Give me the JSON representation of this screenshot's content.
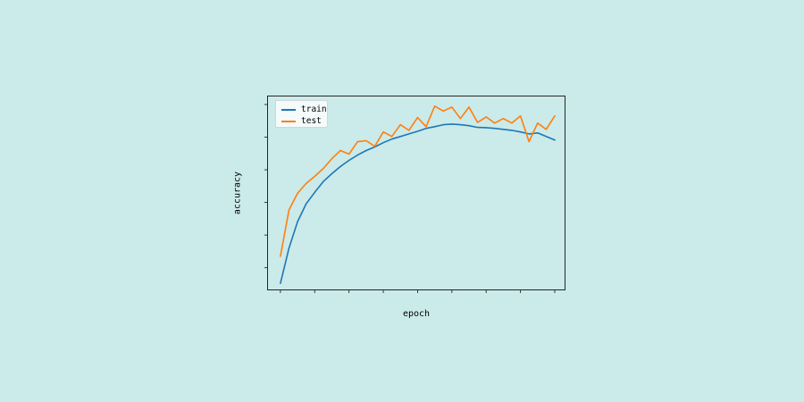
{
  "page": {
    "background_color": "#cbeaea",
    "frame_color": "#262626"
  },
  "labels": {
    "x_axis": "epoch",
    "y_axis": "accuracy"
  },
  "legend": {
    "position": "upper left",
    "entries": [
      "train",
      "test"
    ]
  },
  "chart_data": {
    "type": "line",
    "title": "",
    "xlabel": "epoch",
    "ylabel": "accuracy",
    "grid": false,
    "tick_labels_shown": false,
    "xlim": [
      -1.5,
      33.2
    ],
    "ylim": [
      0.332,
      0.926
    ],
    "xticks": [
      0,
      4,
      8,
      12,
      16,
      20,
      24,
      28,
      32
    ],
    "yticks": [
      0.4,
      0.5,
      0.6,
      0.7,
      0.8,
      0.9
    ],
    "x": [
      0,
      1,
      2,
      3,
      4,
      5,
      6,
      7,
      8,
      9,
      10,
      11,
      12,
      13,
      14,
      15,
      16,
      17,
      18,
      19,
      20,
      21,
      22,
      23,
      24,
      25,
      26,
      27,
      28,
      29,
      30,
      31,
      32
    ],
    "series": [
      {
        "name": "train",
        "color": "#1f77b4",
        "values": [
          0.352,
          0.46,
          0.541,
          0.596,
          0.631,
          0.664,
          0.688,
          0.71,
          0.729,
          0.745,
          0.759,
          0.77,
          0.783,
          0.794,
          0.802,
          0.81,
          0.818,
          0.827,
          0.832,
          0.838,
          0.84,
          0.838,
          0.835,
          0.83,
          0.829,
          0.827,
          0.824,
          0.821,
          0.816,
          0.81,
          0.813,
          0.802,
          0.791
        ]
      },
      {
        "name": "test",
        "color": "#ff7f0e",
        "values": [
          0.435,
          0.577,
          0.628,
          0.658,
          0.68,
          0.704,
          0.734,
          0.759,
          0.748,
          0.786,
          0.789,
          0.772,
          0.816,
          0.802,
          0.838,
          0.821,
          0.86,
          0.832,
          0.895,
          0.88,
          0.892,
          0.857,
          0.892,
          0.845,
          0.862,
          0.843,
          0.857,
          0.843,
          0.865,
          0.786,
          0.843,
          0.824,
          0.865
        ]
      }
    ],
    "legend_position": "upper left"
  }
}
